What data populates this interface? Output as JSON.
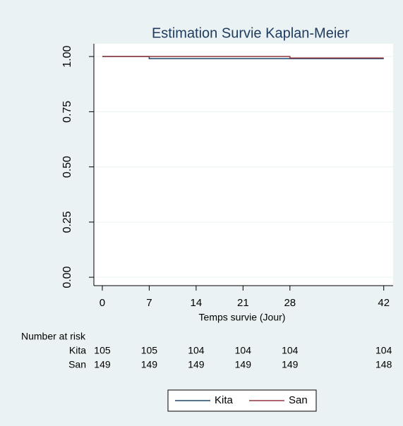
{
  "chart_data": {
    "type": "step",
    "title": "Estimation Survie Kaplan-Meier",
    "x_label": "Temps survie (Jour)",
    "x": [
      0,
      7,
      28,
      42
    ],
    "series": [
      {
        "name": "Kita",
        "color": "#1a476f",
        "values": [
          1,
          0.9905,
          0.9905,
          0.9905
        ],
        "at_risk": [
          105,
          105,
          104,
          104,
          104,
          104
        ]
      },
      {
        "name": "San",
        "color": "#90353b",
        "values": [
          1,
          1,
          0.9933,
          0.9933
        ],
        "at_risk": [
          149,
          149,
          149,
          149,
          149,
          148
        ]
      }
    ],
    "at_risk_title": "Number at risk",
    "xlim": [
      -1.26,
      43.4
    ],
    "xticks": [
      0,
      7,
      14,
      21,
      28,
      42
    ],
    "ylim": [
      -0.038,
      1.058
    ],
    "yticks": [
      {
        "value": 0,
        "label": "0.00"
      },
      {
        "value": 0.25,
        "label": "0.25"
      },
      {
        "value": 0.5,
        "label": "0.50"
      },
      {
        "value": 0.75,
        "label": "0.75"
      },
      {
        "value": 1,
        "label": "1.00"
      }
    ],
    "grid": true,
    "legend": "bottom"
  }
}
